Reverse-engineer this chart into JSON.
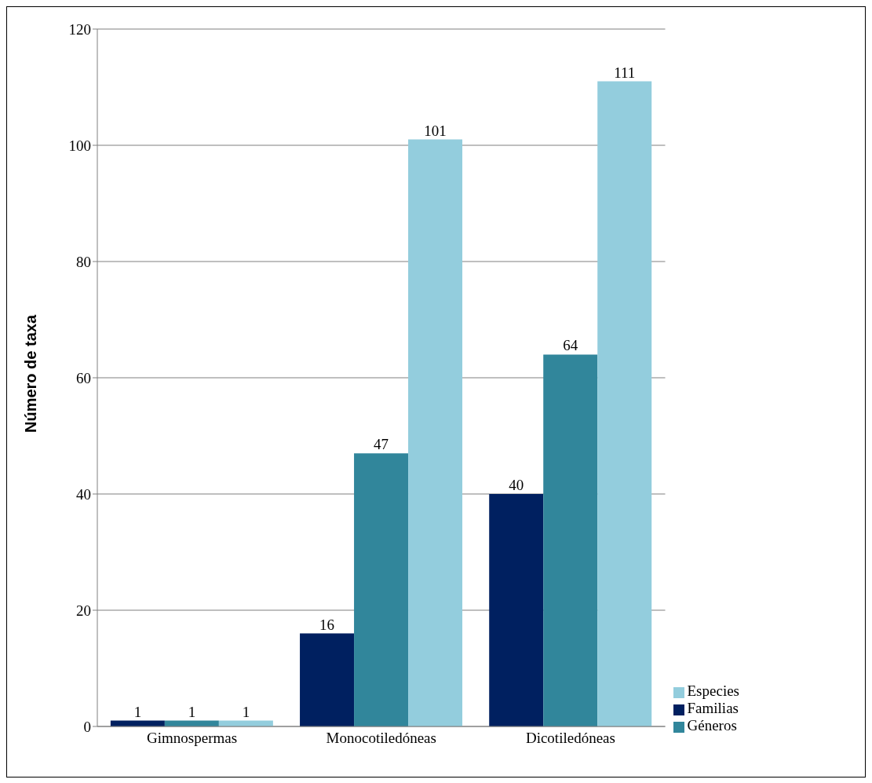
{
  "chart_data": {
    "type": "bar",
    "ylabel": "Número de taxa",
    "categories": [
      "Gimnospermas",
      "Monocotiledóneas",
      "Dicotiledóneas"
    ],
    "series": [
      {
        "name": "Familias",
        "color": "#002060",
        "values": [
          1,
          16,
          40
        ]
      },
      {
        "name": "Géneros",
        "color": "#31869b",
        "values": [
          1,
          47,
          64
        ]
      },
      {
        "name": "Especies",
        "color": "#93cddd",
        "values": [
          1,
          101,
          111
        ]
      }
    ],
    "ylim": [
      0,
      120
    ],
    "yticks": [
      0,
      20,
      40,
      60,
      80,
      100,
      120
    ],
    "grid": "y",
    "legend": "right",
    "data_labels": true
  }
}
